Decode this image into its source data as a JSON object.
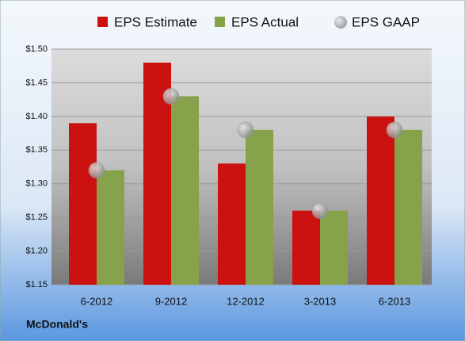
{
  "chart_data": {
    "type": "bar",
    "footer": "McDonald's",
    "categories": [
      "6-2012",
      "9-2012",
      "12-2012",
      "3-2013",
      "6-2013"
    ],
    "series": [
      {
        "name": "EPS Estimate",
        "type": "bar",
        "color": "#cc1111",
        "values": [
          1.39,
          1.48,
          1.33,
          1.26,
          1.4
        ]
      },
      {
        "name": "EPS Actual",
        "type": "bar",
        "color": "#86a24a",
        "values": [
          1.32,
          1.43,
          1.38,
          1.26,
          1.38
        ]
      },
      {
        "name": "EPS GAAP",
        "type": "scatter",
        "color": "#9a9a9a",
        "values": [
          1.32,
          1.43,
          1.38,
          1.26,
          1.38
        ]
      }
    ],
    "ylim": [
      1.15,
      1.5
    ],
    "yticks": [
      {
        "value": 1.15,
        "label": "$1.15"
      },
      {
        "value": 1.2,
        "label": "$1.20"
      },
      {
        "value": 1.25,
        "label": "$1.25"
      },
      {
        "value": 1.3,
        "label": "$1.30"
      },
      {
        "value": 1.35,
        "label": "$1.35"
      },
      {
        "value": 1.4,
        "label": "$1.40"
      },
      {
        "value": 1.45,
        "label": "$1.45"
      },
      {
        "value": 1.5,
        "label": "$1.50"
      }
    ],
    "grid": true,
    "legend": "top"
  }
}
